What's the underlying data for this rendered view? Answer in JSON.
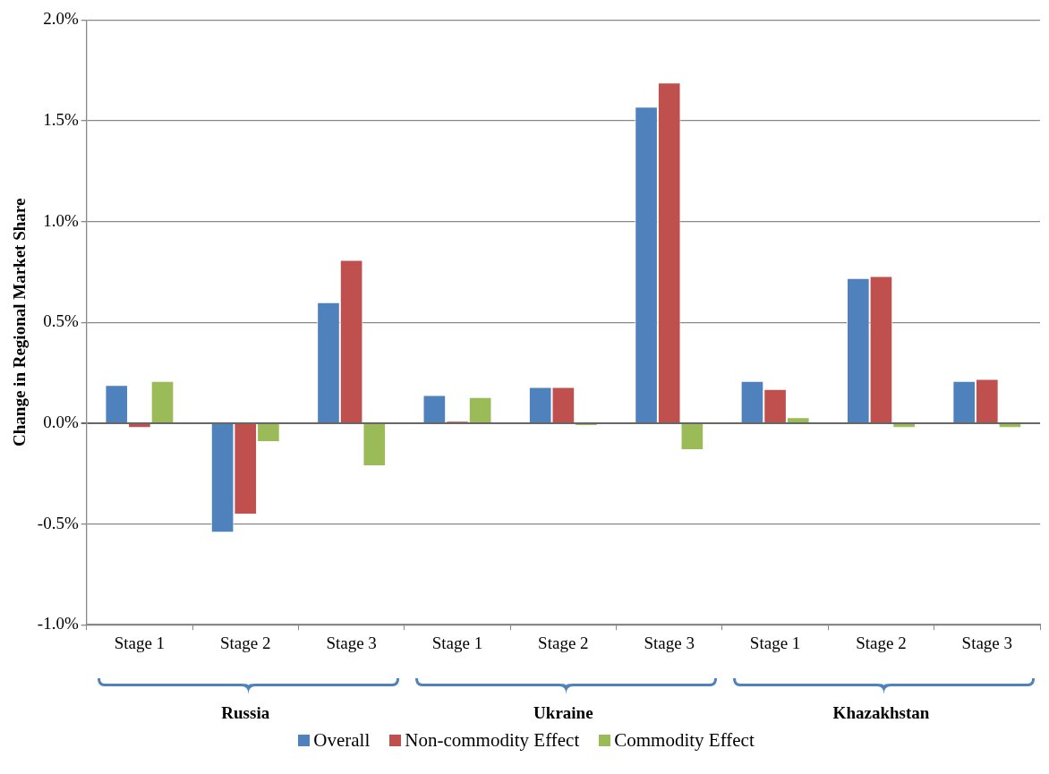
{
  "chart_data": {
    "type": "bar",
    "ylabel": "Change in Regional Market Share",
    "categories": [
      "Stage 1",
      "Stage 2",
      "Stage 3",
      "Stage 1",
      "Stage 2",
      "Stage 3",
      "Stage 1",
      "Stage 2",
      "Stage 3"
    ],
    "series": [
      {
        "name": "Overall",
        "color": "#4f81bd",
        "values": [
          0.19,
          -0.54,
          0.6,
          0.14,
          0.18,
          1.57,
          0.21,
          0.72,
          0.21
        ]
      },
      {
        "name": "Non-commodity Effect",
        "color": "#c0504d",
        "values": [
          -0.02,
          -0.45,
          0.81,
          0.01,
          0.18,
          1.69,
          0.17,
          0.73,
          0.22
        ]
      },
      {
        "name": "Commodity Effect",
        "color": "#9bbb59",
        "values": [
          0.21,
          -0.09,
          -0.21,
          0.13,
          -0.01,
          -0.13,
          0.03,
          -0.02,
          -0.02
        ]
      }
    ],
    "ylim": [
      -1,
      2
    ],
    "yticks": [
      {
        "value": -1,
        "label": "-1.0%"
      },
      {
        "value": -0.5,
        "label": "-0.5%"
      },
      {
        "value": 0,
        "label": "0.0%"
      },
      {
        "value": 0.5,
        "label": "0.5%"
      },
      {
        "value": 1,
        "label": "1.0%"
      },
      {
        "value": 1.5,
        "label": "1.5%"
      },
      {
        "value": 2,
        "label": "2.0%"
      }
    ],
    "grid": "y",
    "legend": "bottom",
    "annotations": [
      "Russia",
      "Ukraine",
      "Khazakhstan"
    ]
  }
}
